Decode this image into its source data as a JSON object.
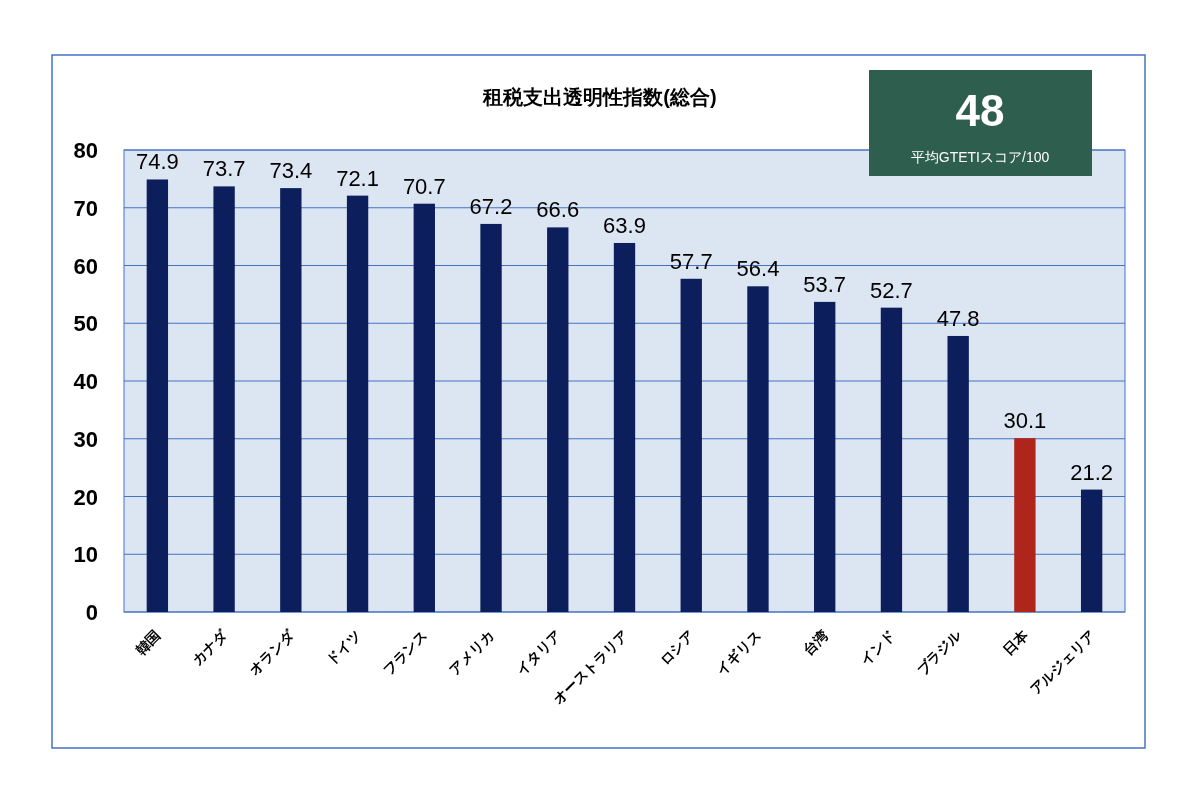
{
  "chart_data": {
    "type": "bar",
    "title": "租税支出透明性指数(総合)",
    "categories": [
      "韓国",
      "カナダ",
      "オランダ",
      "ドイツ",
      "フランス",
      "アメリカ",
      "イタリア",
      "オーストラリア",
      "ロシア",
      "イギリス",
      "台湾",
      "インド",
      "ブラジル",
      "日本",
      "アルジェリア"
    ],
    "values": [
      74.9,
      73.7,
      73.4,
      72.1,
      70.7,
      67.2,
      66.6,
      63.9,
      57.7,
      56.4,
      53.7,
      52.7,
      47.8,
      30.1,
      21.2
    ],
    "colors": [
      "#0c1f5c",
      "#0c1f5c",
      "#0c1f5c",
      "#0c1f5c",
      "#0c1f5c",
      "#0c1f5c",
      "#0c1f5c",
      "#0c1f5c",
      "#0c1f5c",
      "#0c1f5c",
      "#0c1f5c",
      "#0c1f5c",
      "#0c1f5c",
      "#b0251b",
      "#0c1f5c"
    ],
    "ylim": [
      0,
      80
    ],
    "yticks": [
      0,
      10,
      20,
      30,
      40,
      50,
      60,
      70,
      80
    ],
    "grid": "y",
    "data_labels": true,
    "annotations": [
      "48",
      "平均GTETIスコア/100"
    ]
  }
}
